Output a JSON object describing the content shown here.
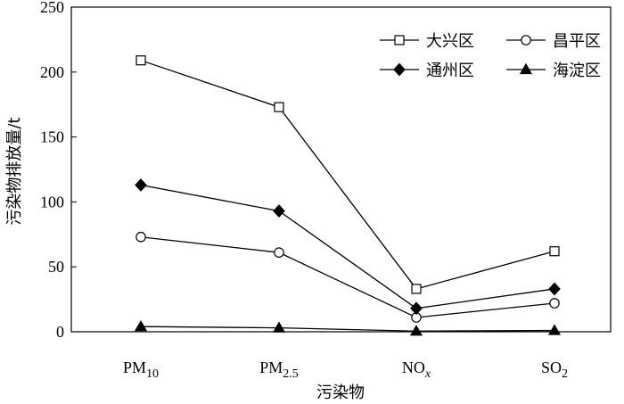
{
  "chart_data": {
    "type": "line",
    "categories": [
      "PM",
      "PM",
      "NO",
      "SO"
    ],
    "category_subscripts": [
      "10",
      "2.5",
      "x",
      "2"
    ],
    "xlabel": "污染物",
    "ylabel": "污染物排放量/t",
    "ylim": [
      0,
      250
    ],
    "yticks": [
      0,
      50,
      100,
      150,
      200,
      250
    ],
    "legend_position": "top-right",
    "series": [
      {
        "name": "大兴区",
        "marker": "open-square",
        "values": [
          209,
          173,
          33,
          62
        ]
      },
      {
        "name": "昌平区",
        "marker": "open-circle",
        "values": [
          73,
          61,
          11,
          22
        ]
      },
      {
        "name": "通州区",
        "marker": "filled-diamond",
        "values": [
          113,
          93,
          18,
          33
        ]
      },
      {
        "name": "海淀区",
        "marker": "filled-triangle",
        "values": [
          4,
          3,
          0.5,
          1
        ]
      }
    ]
  }
}
